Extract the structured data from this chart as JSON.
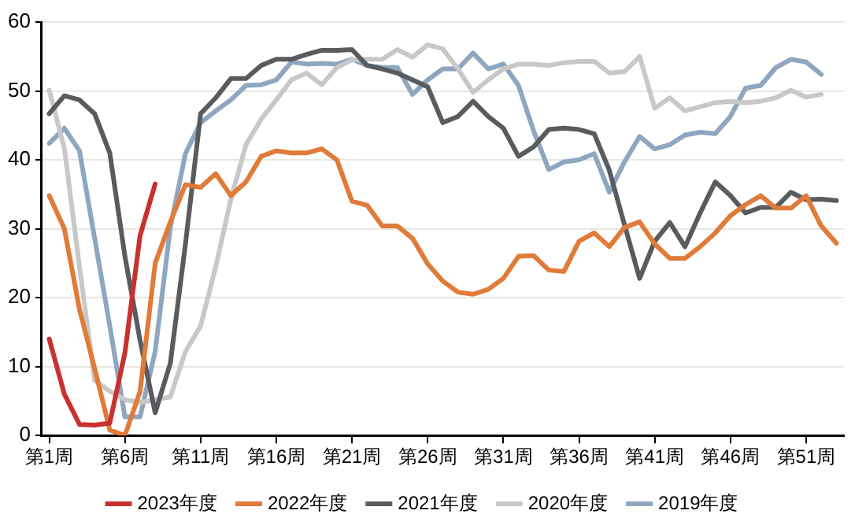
{
  "chart_data": {
    "type": "line",
    "categories": [
      "第1周",
      null,
      null,
      null,
      null,
      "第6周",
      null,
      null,
      null,
      null,
      "第11周",
      null,
      null,
      null,
      null,
      "第16周",
      null,
      null,
      null,
      null,
      "第21周",
      null,
      null,
      null,
      null,
      "第26周",
      null,
      null,
      null,
      null,
      "第31周",
      null,
      null,
      null,
      null,
      "第36周",
      null,
      null,
      null,
      null,
      "第41周",
      null,
      null,
      null,
      null,
      "第46周",
      null,
      null,
      null,
      null,
      "第51周",
      null,
      null
    ],
    "ylim": [
      0,
      60
    ],
    "yticks": [
      0,
      10,
      20,
      30,
      40,
      50,
      60
    ],
    "grid": "y",
    "legend": "bottom",
    "marker": "none",
    "line_style": "solid",
    "series": [
      {
        "name": "2023年度",
        "color": "#c8312d",
        "values": [
          14,
          6,
          1.6,
          1.5,
          1.8,
          12,
          29,
          36.5,
          null,
          null,
          null,
          null,
          null,
          null,
          null,
          null,
          null,
          null,
          null,
          null,
          null,
          null,
          null,
          null,
          null,
          null,
          null,
          null,
          null,
          null,
          null,
          null,
          null,
          null,
          null,
          null,
          null,
          null,
          null,
          null,
          null,
          null,
          null,
          null,
          null,
          null,
          null,
          null,
          null,
          null,
          null,
          null,
          null
        ]
      },
      {
        "name": "2022年度",
        "color": "#e07b39",
        "values": [
          34.8,
          30,
          18.3,
          9.7,
          0.8,
          0,
          6.4,
          25,
          31,
          36.4,
          36,
          38,
          34.8,
          36.8,
          40.5,
          41.3,
          41,
          41,
          41.6,
          40,
          34,
          33.4,
          30.4,
          30.4,
          28.6,
          24.9,
          22.4,
          20.8,
          20.5,
          21.2,
          22.8,
          26,
          26.1,
          24,
          23.8,
          28.2,
          29.4,
          27.4,
          30.2,
          31,
          27.8,
          25.7,
          25.7,
          27.4,
          29.4,
          31.9,
          33.5,
          34.8,
          33,
          33,
          34.8,
          30.4,
          27.9
        ]
      },
      {
        "name": "2021年度",
        "color": "#595b5f",
        "values": [
          46.7,
          49.3,
          48.7,
          46.7,
          41,
          26,
          13.8,
          3.3,
          10.5,
          27.8,
          46.7,
          49,
          51.8,
          51.8,
          53.7,
          54.6,
          54.6,
          55.3,
          55.9,
          55.9,
          56,
          53.7,
          53.2,
          52.6,
          51.6,
          50.6,
          45.4,
          46.3,
          48.5,
          46.3,
          44.6,
          40.5,
          41.9,
          44.4,
          44.6,
          44.4,
          43.8,
          38.5,
          30.6,
          22.8,
          28.2,
          30.9,
          27.4,
          32.3,
          36.8,
          34.8,
          32.3,
          33.1,
          33.1,
          35.3,
          34.2,
          34.3,
          34.1
        ]
      },
      {
        "name": "2020年度",
        "color": "#c8c8c8",
        "values": [
          50.1,
          41.7,
          24.5,
          8,
          6.4,
          5.2,
          4.8,
          5.2,
          5.6,
          12.2,
          15.9,
          24.5,
          34.3,
          42.2,
          45.9,
          48.7,
          51.6,
          52.6,
          50.9,
          53.4,
          54.5,
          54.6,
          54.6,
          56,
          54.9,
          56.7,
          56.1,
          53.2,
          49.8,
          51.6,
          53.2,
          53.9,
          53.9,
          53.7,
          54.1,
          54.3,
          54.3,
          52.6,
          52.8,
          55,
          47.5,
          49,
          47.1,
          47.7,
          48.3,
          48.5,
          48.3,
          48.5,
          49,
          50.1,
          49.1,
          49.5,
          null
        ]
      },
      {
        "name": "2019年度",
        "color": "#8fa6bf",
        "values": [
          42.4,
          44.6,
          41.3,
          28.6,
          15.9,
          2.7,
          2.7,
          12.2,
          30.2,
          40.9,
          45.4,
          47.1,
          48.7,
          50.8,
          50.9,
          51.6,
          54.2,
          53.9,
          54,
          53.9,
          54.6,
          53.7,
          53.4,
          53.4,
          49.5,
          51.6,
          53.2,
          53.2,
          55.5,
          53.2,
          53.9,
          50.8,
          44.2,
          38.6,
          39.7,
          40,
          40.9,
          35.3,
          39.7,
          43.4,
          41.6,
          42.2,
          43.6,
          44,
          43.8,
          46.3,
          50.4,
          50.8,
          53.4,
          54.6,
          54.2,
          52.4,
          null
        ]
      }
    ]
  }
}
